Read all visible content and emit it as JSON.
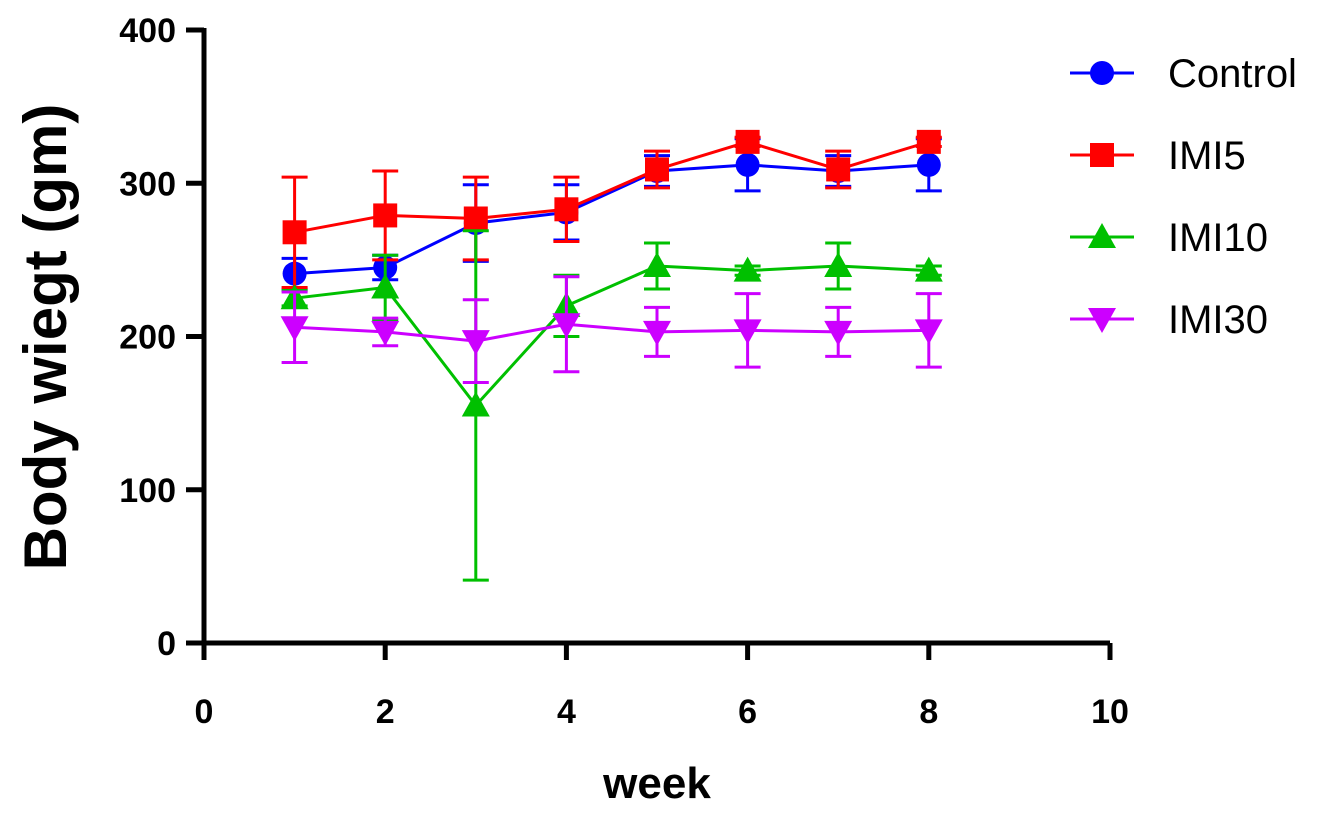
{
  "chart_data": {
    "type": "line",
    "title": "",
    "xlabel": "week",
    "ylabel": "Body wiegt (gm)",
    "xlim": [
      0,
      10
    ],
    "ylim": [
      0,
      400
    ],
    "x_ticks": [
      0,
      2,
      4,
      6,
      8,
      10
    ],
    "y_ticks": [
      0,
      100,
      200,
      300,
      400
    ],
    "grid": false,
    "legend_position": "top-right",
    "x": [
      1,
      2,
      3,
      4,
      5,
      6,
      7,
      8
    ],
    "series": [
      {
        "name": "Control",
        "color": "#0000ff",
        "marker": "circle",
        "values": [
          241,
          245,
          274,
          281,
          308,
          312,
          308,
          312
        ],
        "error": [
          10,
          8,
          25,
          18,
          10,
          17,
          10,
          17
        ]
      },
      {
        "name": "IMI5",
        "color": "#ff0000",
        "marker": "square",
        "values": [
          268,
          279,
          277,
          283,
          309,
          327,
          309,
          327
        ],
        "error": [
          36,
          29,
          27,
          21,
          12,
          3,
          12,
          3
        ]
      },
      {
        "name": "IMI10",
        "color": "#00c000",
        "marker": "triangle-up",
        "values": [
          225,
          232,
          155,
          220,
          246,
          243,
          246,
          243
        ],
        "error": [
          5,
          21,
          114,
          20,
          15,
          3,
          15,
          3
        ]
      },
      {
        "name": "IMI30",
        "color": "#cc00ff",
        "marker": "triangle-down",
        "values": [
          206,
          203,
          197,
          208,
          203,
          204,
          203,
          204
        ],
        "error": [
          23,
          9,
          27,
          31,
          16,
          24,
          16,
          24
        ]
      }
    ]
  }
}
